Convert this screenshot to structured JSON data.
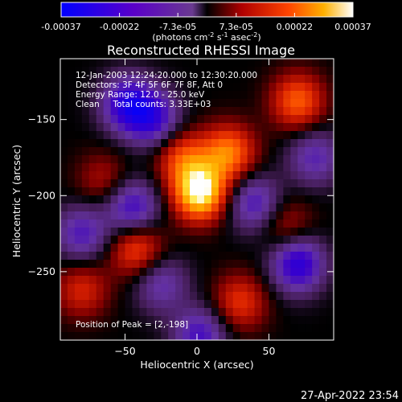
{
  "chart_data": {
    "type": "heatmap",
    "title": "Reconstructed RHESSI Image",
    "colorbar": {
      "ticks": [
        "-0.00037",
        "-0.00022",
        "-7.3e-05",
        "7.3e-05",
        "0.00022",
        "0.00037"
      ],
      "range": [
        -0.00037,
        0.00037
      ],
      "unit_parts": [
        "(photons cm",
        "-2",
        " s",
        "-1",
        " asec",
        "-2",
        ")"
      ]
    },
    "xlabel": "Heliocentric X (arcsec)",
    "ylabel": "Heliocentric Y (arcsec)",
    "xlim": [
      -95,
      95
    ],
    "ylim": [
      -295,
      -110
    ],
    "x_ticks": [
      -50,
      0,
      50
    ],
    "y_ticks": [
      -150,
      -200,
      -250
    ],
    "annotations": [
      "12-Jan-2003 12:24:20.000 to 12:30:20.000",
      "Detectors: 3F 4F 5F 6F 7F 8F, Att 0",
      "Energy Range: 12.0 - 25.0 keV",
      "Clean     Total counts: 3.33E+03"
    ],
    "peak_label": "Position of Peak = [2,-198]",
    "peak": [
      2,
      -198
    ],
    "sources": [
      {
        "x": 2,
        "y": -198,
        "value": 0.00037
      },
      {
        "x": 22,
        "y": -172,
        "value": 0.00024
      },
      {
        "x": -10,
        "y": -175,
        "value": 0.00018
      },
      {
        "x": -42,
        "y": -235,
        "value": 0.00019
      },
      {
        "x": 70,
        "y": -138,
        "value": 0.00021
      },
      {
        "x": 30,
        "y": -270,
        "value": 0.00016
      },
      {
        "x": -80,
        "y": -262,
        "value": 0.00014
      },
      {
        "x": -65,
        "y": -190,
        "value": 0.0001
      },
      {
        "x": 62,
        "y": -220,
        "value": 0.00011
      },
      {
        "x": -30,
        "y": -150,
        "value": -0.00021
      },
      {
        "x": -48,
        "y": -140,
        "value": -0.00026
      },
      {
        "x": -45,
        "y": -208,
        "value": -0.00022
      },
      {
        "x": 70,
        "y": -245,
        "value": -0.00027
      },
      {
        "x": 40,
        "y": -205,
        "value": -0.00019
      },
      {
        "x": 82,
        "y": -175,
        "value": -0.00016
      },
      {
        "x": -80,
        "y": -225,
        "value": -0.00018
      },
      {
        "x": 2,
        "y": -292,
        "value": -0.0002
      },
      {
        "x": -25,
        "y": -258,
        "value": -0.00015
      }
    ]
  },
  "footer": {
    "timestamp": "27-Apr-2022 23:54"
  },
  "colors": {
    "background": "#000000",
    "foreground": "#ffffff"
  }
}
